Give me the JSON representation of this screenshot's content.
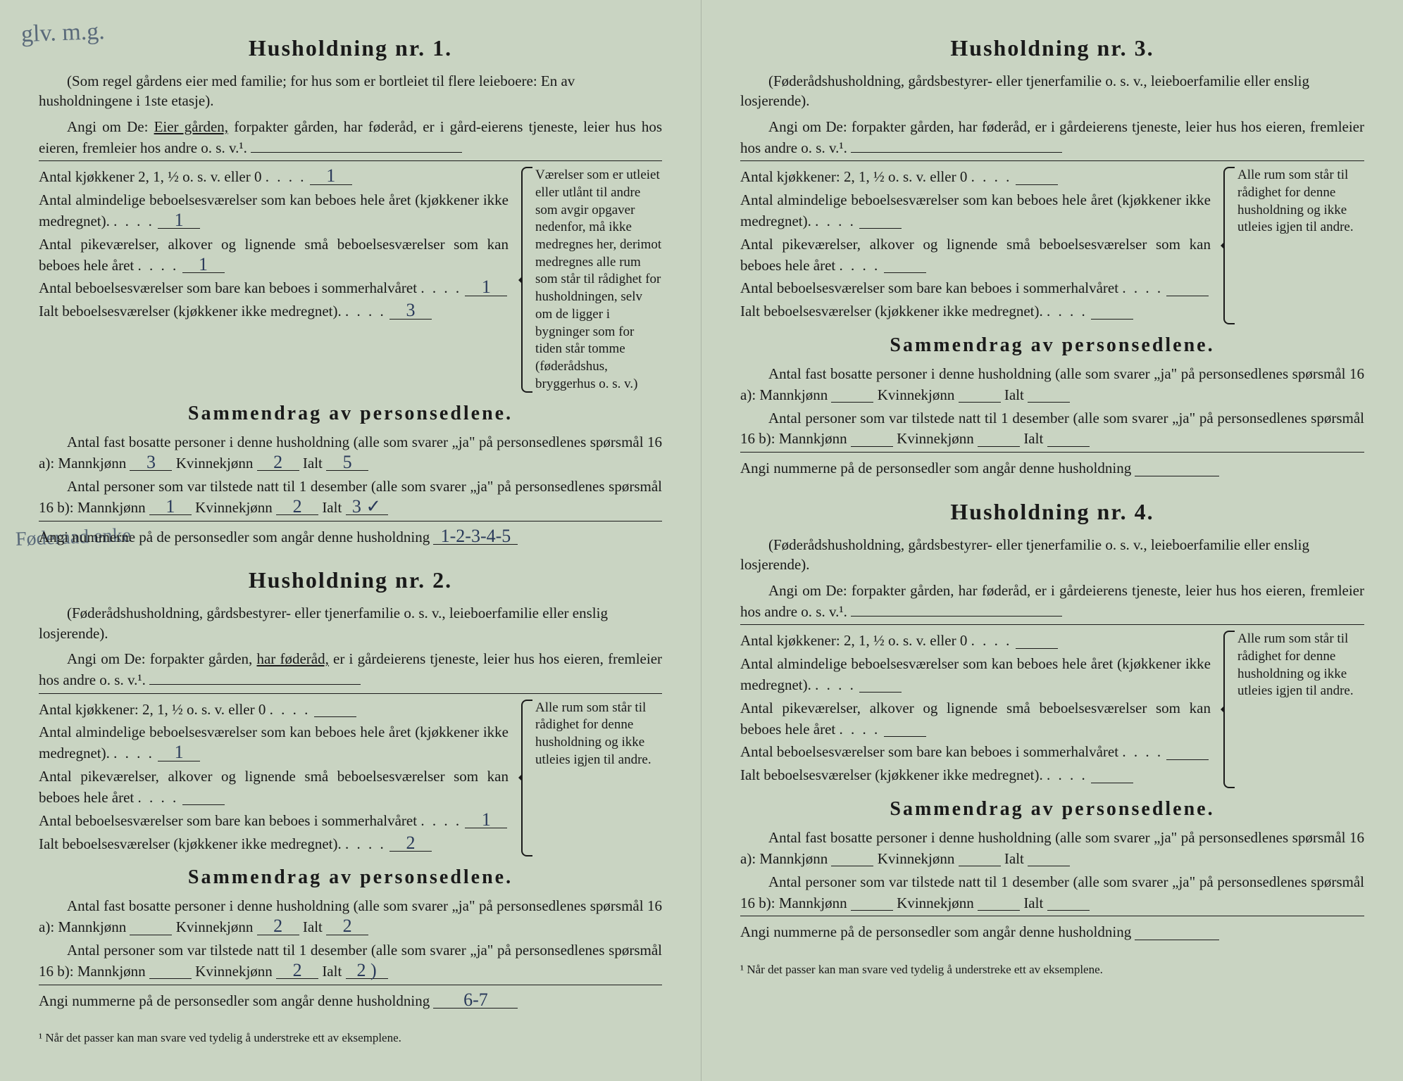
{
  "page_bg": "#c9d4c2",
  "text_color": "#1a1a1a",
  "handwriting_color": "#5a6a7a",
  "fill_color": "#2a3a5a",
  "annotations": {
    "top_left": "glv.\nm.g.",
    "mid_left": "Føderaad\nenke"
  },
  "households": [
    {
      "title": "Husholdning nr. 1.",
      "intro": "(Som regel gårdens eier med familie; for hus som er bortleiet til flere leieboere: En av husholdningene i 1ste etasje).",
      "angi_prefix": "Angi om De:",
      "angi_opts": [
        "Eier gården,",
        "forpakter gården,",
        "har føderåd,",
        "er i gård-eierens tjeneste,",
        "leier hus hos eieren,",
        "fremleier hos andre",
        "o. s. v.¹."
      ],
      "angi_underlined": 0,
      "rows": [
        {
          "label": "Antal kjøkkener 2, 1, ½ o. s. v. eller 0",
          "val": "1"
        },
        {
          "label": "Antal almindelige beboelsesværelser som kan beboes hele året",
          "sub": "(kjøkkener ikke medregnet).",
          "val": "1"
        },
        {
          "label": "Antal pikeværelser, alkover og lignende små beboelsesværelser som kan beboes hele året",
          "val": "1"
        },
        {
          "label": "Antal beboelsesværelser som bare kan beboes i sommerhalvåret",
          "val": "1"
        },
        {
          "label": "Ialt beboelsesværelser (kjøkkener ikke medregnet).",
          "val": "3"
        }
      ],
      "side_note": "Værelser som er utleiet eller utlånt til andre som avgir opgaver nedenfor, må ikke medregnes her, derimot medregnes alle rum som står til rådighet for husholdningen, selv om de ligger i bygninger som for tiden står tomme (føderådshus, bryggerhus o. s. v.)",
      "summary_title": "Sammendrag av personsedlene.",
      "fast_line": "Antal fast bosatte personer i denne husholdning (alle som svarer „ja\" på personsedlenes spørsmål 16 a): Mannkjønn",
      "fast_m": "3",
      "fast_k": "2",
      "fast_i": "5",
      "til_line": "Antal personer som var tilstede natt til 1 desember (alle som svarer „ja\" på personsedlenes spørsmål 16 b): Mannkjønn",
      "til_m": "1",
      "til_k": "2",
      "til_i": "3 ✓",
      "num_line": "Angi nummerne på de personsedler som angår denne husholdning",
      "num_val": "1-2-3-4-5"
    },
    {
      "title": "Husholdning nr. 2.",
      "intro": "(Føderådshusholdning, gårdsbestyrer- eller tjenerfamilie o. s. v., leieboerfamilie eller enslig losjerende).",
      "angi_prefix": "Angi om De:",
      "angi_opts": [
        "forpakter gården,",
        "har føderåd,",
        "er i gårdeierens tjeneste,",
        "leier hus hos eieren,",
        "fremleier hos andre",
        "o. s. v.¹."
      ],
      "angi_underlined": 1,
      "rows": [
        {
          "label": "Antal kjøkkener: 2, 1, ½ o. s. v. eller 0",
          "val": ""
        },
        {
          "label": "Antal almindelige beboelsesværelser som kan beboes hele året (kjøkkener ikke medregnet).",
          "val": "1"
        },
        {
          "label": "Antal pikeværelser, alkover og lignende små beboelsesværelser som kan beboes hele året",
          "val": ""
        },
        {
          "label": "Antal beboelsesværelser som bare kan beboes i sommerhalvåret",
          "val": "1"
        },
        {
          "label": "Ialt beboelsesværelser (kjøkkener ikke medregnet).",
          "val": "2"
        }
      ],
      "side_note": "Alle rum som står til rådighet for denne husholdning og ikke utleies igjen til andre.",
      "summary_title": "Sammendrag av personsedlene.",
      "fast_line": "Antal fast bosatte personer i denne husholdning (alle som svarer „ja\" på personsedlenes spørsmål 16 a): Mannkjønn",
      "fast_m": "",
      "fast_k": "2",
      "fast_i": "2",
      "til_line": "Antal personer som var tilstede natt til 1 desember (alle som svarer „ja\" på personsedlenes spørsmål 16 b): Mannkjønn",
      "til_m": "",
      "til_k": "2",
      "til_i": "2 )",
      "num_line": "Angi nummerne på de personsedler som angår denne husholdning",
      "num_val": "6-7"
    },
    {
      "title": "Husholdning nr. 3.",
      "intro": "(Føderådshusholdning, gårdsbestyrer- eller tjenerfamilie o. s. v., leieboerfamilie eller enslig losjerende).",
      "angi_prefix": "Angi om De:",
      "angi_opts": [
        "forpakter gården,",
        "har føderåd,",
        "er i gårdeierens tjeneste,",
        "leier hus hos eieren,",
        "fremleier hos andre",
        "o. s. v.¹."
      ],
      "angi_underlined": -1,
      "rows": [
        {
          "label": "Antal kjøkkener: 2, 1, ½ o. s. v. eller 0",
          "val": ""
        },
        {
          "label": "Antal almindelige beboelsesværelser som kan beboes hele året (kjøkkener ikke medregnet).",
          "val": ""
        },
        {
          "label": "Antal pikeværelser, alkover og lignende små beboelsesværelser som kan beboes hele året",
          "val": ""
        },
        {
          "label": "Antal beboelsesværelser som bare kan beboes i sommerhalvåret",
          "val": ""
        },
        {
          "label": "Ialt beboelsesværelser (kjøkkener ikke medregnet).",
          "val": ""
        }
      ],
      "side_note": "Alle rum som står til rådighet for denne husholdning og ikke utleies igjen til andre.",
      "summary_title": "Sammendrag av personsedlene.",
      "fast_line": "Antal fast bosatte personer i denne husholdning (alle som svarer „ja\" på personsedlenes spørsmål 16 a): Mannkjønn",
      "fast_m": "",
      "fast_k": "",
      "fast_i": "",
      "til_line": "Antal personer som var tilstede natt til 1 desember (alle som svarer „ja\" på personsedlenes spørsmål 16 b): Mannkjønn",
      "til_m": "",
      "til_k": "",
      "til_i": "",
      "num_line": "Angi nummerne på de personsedler som angår denne husholdning",
      "num_val": ""
    },
    {
      "title": "Husholdning nr. 4.",
      "intro": "(Føderådshusholdning, gårdsbestyrer- eller tjenerfamilie o. s. v., leieboerfamilie eller enslig losjerende).",
      "angi_prefix": "Angi om De:",
      "angi_opts": [
        "forpakter gården,",
        "har føderåd,",
        "er i gårdeierens tjeneste,",
        "leier hus hos eieren,",
        "fremleier hos andre",
        "o. s. v.¹."
      ],
      "angi_underlined": -1,
      "rows": [
        {
          "label": "Antal kjøkkener: 2, 1, ½ o. s. v. eller 0",
          "val": ""
        },
        {
          "label": "Antal almindelige beboelsesværelser som kan beboes hele året (kjøkkener ikke medregnet).",
          "val": ""
        },
        {
          "label": "Antal pikeværelser, alkover og lignende små beboelsesværelser som kan beboes hele året",
          "val": ""
        },
        {
          "label": "Antal beboelsesværelser som bare kan beboes i sommerhalvåret",
          "val": ""
        },
        {
          "label": "Ialt beboelsesværelser (kjøkkener ikke medregnet).",
          "val": ""
        }
      ],
      "side_note": "Alle rum som står til rådighet for denne husholdning og ikke utleies igjen til andre.",
      "summary_title": "Sammendrag av personsedlene.",
      "fast_line": "Antal fast bosatte personer i denne husholdning (alle som svarer „ja\" på personsedlenes spørsmål 16 a): Mannkjønn",
      "fast_m": "",
      "fast_k": "",
      "fast_i": "",
      "til_line": "Antal personer som var tilstede natt til 1 desember (alle som svarer „ja\" på personsedlenes spørsmål 16 b): Mannkjønn",
      "til_m": "",
      "til_k": "",
      "til_i": "",
      "num_line": "Angi nummerne på de personsedler som angår denne husholdning",
      "num_val": ""
    }
  ],
  "labels": {
    "kvinne": "Kvinnekjønn",
    "ialt": "Ialt",
    "footnote": "¹ Når det passer kan man svare ved tydelig å understreke ett av eksemplene."
  }
}
